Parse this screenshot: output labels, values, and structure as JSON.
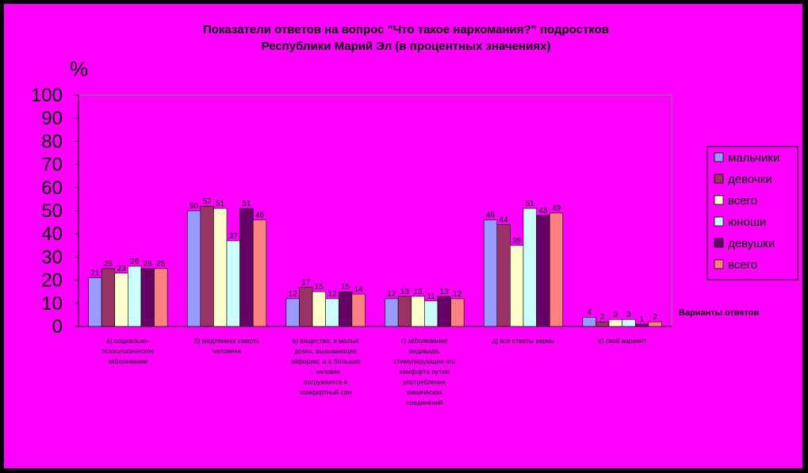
{
  "chart_data": {
    "type": "bar",
    "title": "Показатели ответов на вопрос \"Что такое наркомания?\" подростков Республики Марий Эл (в процентных значениях)",
    "title_lines": [
      "Показатели ответов на вопрос \"Что такое наркомания?\" подростков",
      "Республики Марий Эл (в процентных значениях)"
    ],
    "ylabel": "%",
    "xlabel": "Варианты ответов",
    "ylim": [
      0,
      100
    ],
    "yticks": [
      0,
      10,
      20,
      30,
      40,
      50,
      60,
      70,
      80,
      90,
      100
    ],
    "grid": false,
    "legend_position": "right",
    "categories": [
      "а) социально-психологическое заболевание",
      "б) медленная смерть человека",
      "в) вещество, в малых дозах, вызывающее эйфорию, а в больших - человек погружается в комфортный сон",
      "г) заболевание индивида, стимулирующее эго комфорта путем употребления химических соединений",
      "д) все ответы верны",
      "е) свой вариант"
    ],
    "category_lines": [
      [
        "а) социально-",
        "психологическое",
        "заболевание"
      ],
      [
        "б) медленная смерть",
        "человека"
      ],
      [
        "в) вещество, в малых",
        "дозах, вызывающее",
        "эйфорию, а в больших",
        "- человек",
        "погружается в",
        "комфортный сон"
      ],
      [
        "г) заболевание",
        "индивида,",
        "стимулирующее эго",
        "комфорта путем",
        "употребления",
        "химических",
        "соединений"
      ],
      [
        "д) все ответы верны"
      ],
      [
        "е) свой вариант"
      ]
    ],
    "series": [
      {
        "name": "мальчики",
        "color": "#9999ff",
        "values": [
          21,
          50,
          12,
          12,
          46,
          4
        ]
      },
      {
        "name": "девочки",
        "color": "#993366",
        "values": [
          25,
          52,
          17,
          13,
          44,
          2
        ]
      },
      {
        "name": "всего",
        "color": "#ffffcc",
        "values": [
          23,
          51,
          15,
          13,
          35,
          3
        ]
      },
      {
        "name": "юноши",
        "color": "#ccffff",
        "values": [
          26,
          37,
          12,
          11,
          51,
          3
        ]
      },
      {
        "name": "девушки",
        "color": "#660066",
        "values": [
          25,
          51,
          15,
          13,
          48,
          1
        ]
      },
      {
        "name": "всего",
        "color": "#ff8080",
        "values": [
          25,
          46,
          14,
          12,
          49,
          2
        ]
      }
    ]
  }
}
